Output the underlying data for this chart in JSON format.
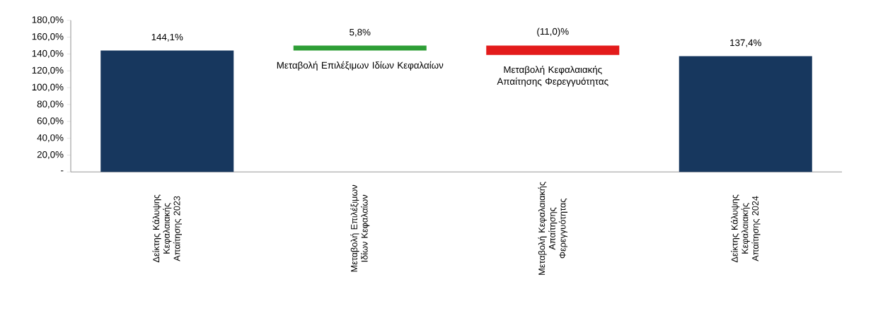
{
  "chart_data": {
    "type": "bar",
    "categories": [
      "Δείκτης Κάλυψης Κεφαλαιακής Απαίτησης 2023",
      "Μεταβολή Επιλέξιμων Ιδίων Κεφαλαίων",
      "Μεταβολή Κεφαλαιακής Απαίτησης Φερεγγυότητας",
      "Δείκτης Κάλυψης Κεφαλαιακής Απαίτησης 2024"
    ],
    "values": [
      144.1,
      5.8,
      -11.0,
      137.4
    ],
    "base": [
      0,
      144.1,
      149.9,
      0
    ],
    "colors": [
      "#17375e",
      "#2e9e36",
      "#e31b1b",
      "#17375e"
    ],
    "value_labels": [
      "144,1%",
      "5,8%",
      "(11,0)%",
      "137,4%"
    ],
    "annotations": [
      "Μεταβολή Επιλέξιμων Ιδίων Κεφαλαίων",
      "Μεταβολή Κεφαλαιακής Απαίτησης Φερεγγυότητας"
    ],
    "ylim": [
      0,
      180
    ],
    "yticks": [
      {
        "value": 0,
        "label": "-"
      },
      {
        "value": 20,
        "label": "20,0%"
      },
      {
        "value": 40,
        "label": "40,0%"
      },
      {
        "value": 60,
        "label": "60,0%"
      },
      {
        "value": 80,
        "label": "80,0%"
      },
      {
        "value": 100,
        "label": "100,0%"
      },
      {
        "value": 120,
        "label": "120,0%"
      },
      {
        "value": 140,
        "label": "140,0%"
      },
      {
        "value": 160,
        "label": "160,0%"
      },
      {
        "value": 180,
        "label": "180,0%"
      }
    ],
    "grid": false
  }
}
